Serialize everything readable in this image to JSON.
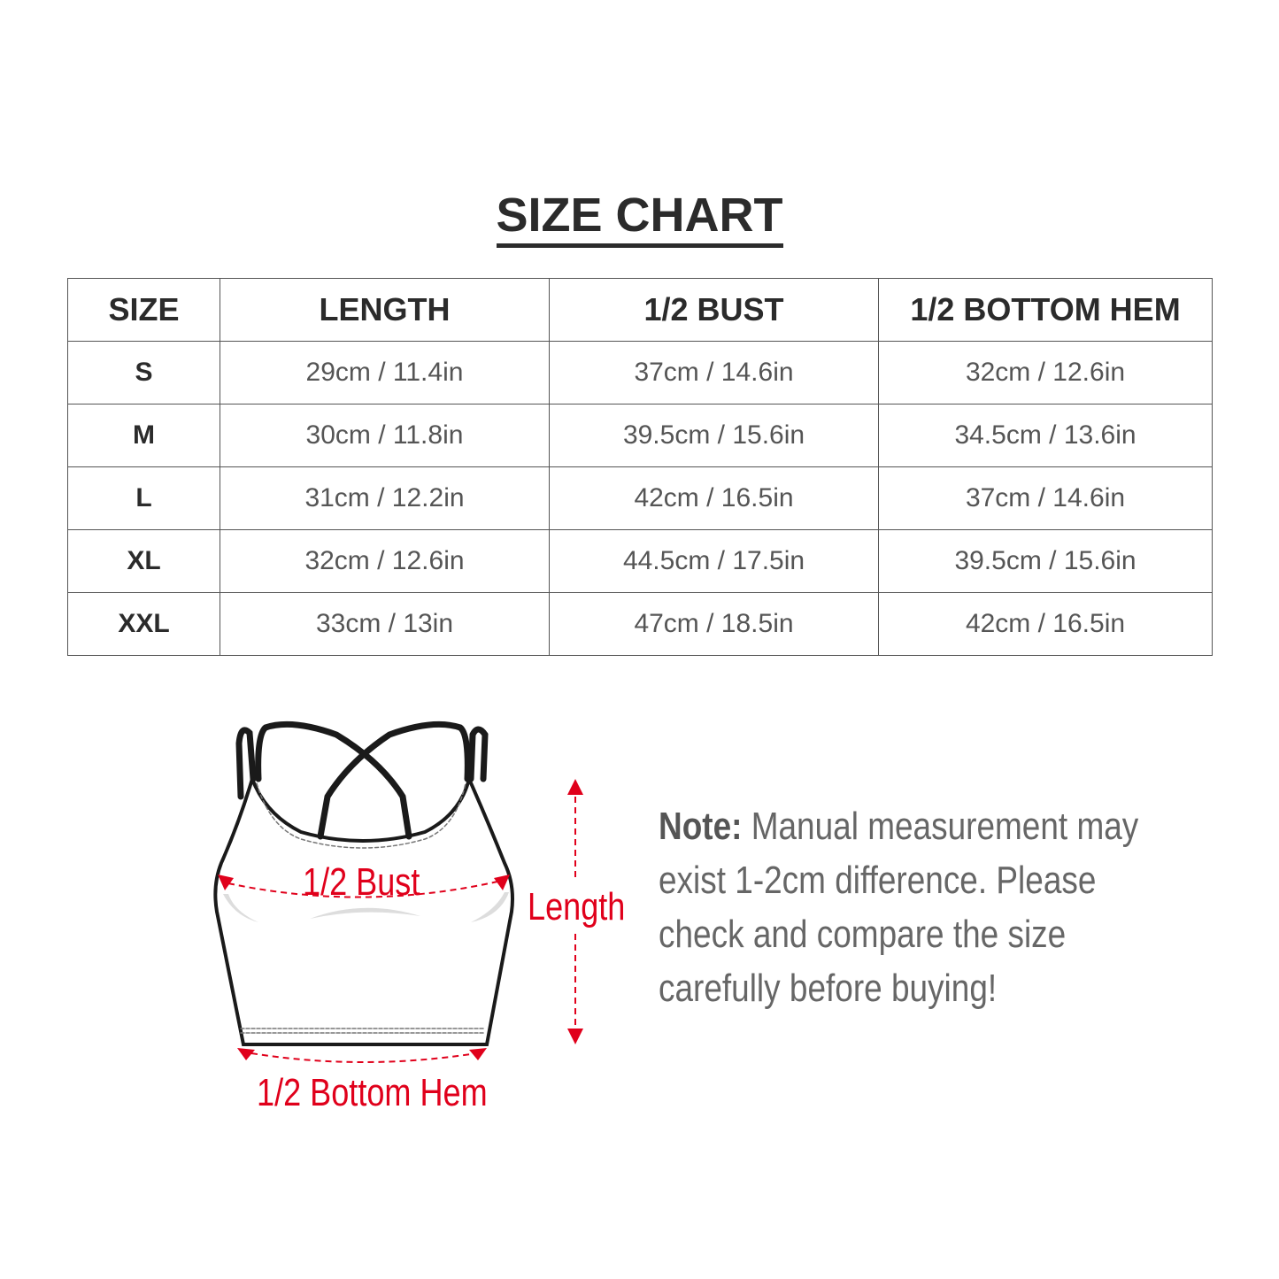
{
  "title": "SIZE CHART",
  "table": {
    "headers": [
      "SIZE",
      "LENGTH",
      "1/2 BUST",
      "1/2 BOTTOM HEM"
    ],
    "rows": [
      [
        "S",
        "29cm / 11.4in",
        "37cm / 14.6in",
        "32cm / 12.6in"
      ],
      [
        "M",
        "30cm / 11.8in",
        "39.5cm / 15.6in",
        "34.5cm / 13.6in"
      ],
      [
        "L",
        "31cm / 12.2in",
        "42cm / 16.5in",
        "37cm / 14.6in"
      ],
      [
        "XL",
        "32cm / 12.6in",
        "44.5cm / 17.5in",
        "39.5cm / 15.6in"
      ],
      [
        "XXL",
        "33cm / 13in",
        "47cm / 18.5in",
        "42cm / 16.5in"
      ]
    ]
  },
  "diagram": {
    "bust_label": "1/2 Bust",
    "length_label": "Length",
    "hem_label": "1/2 Bottom Hem",
    "accent_color": "#e0001b"
  },
  "note": {
    "label": "Note:",
    "text": " Manual measurement may exist 1-2cm difference. Please check and compare the size carefully before buying!"
  }
}
